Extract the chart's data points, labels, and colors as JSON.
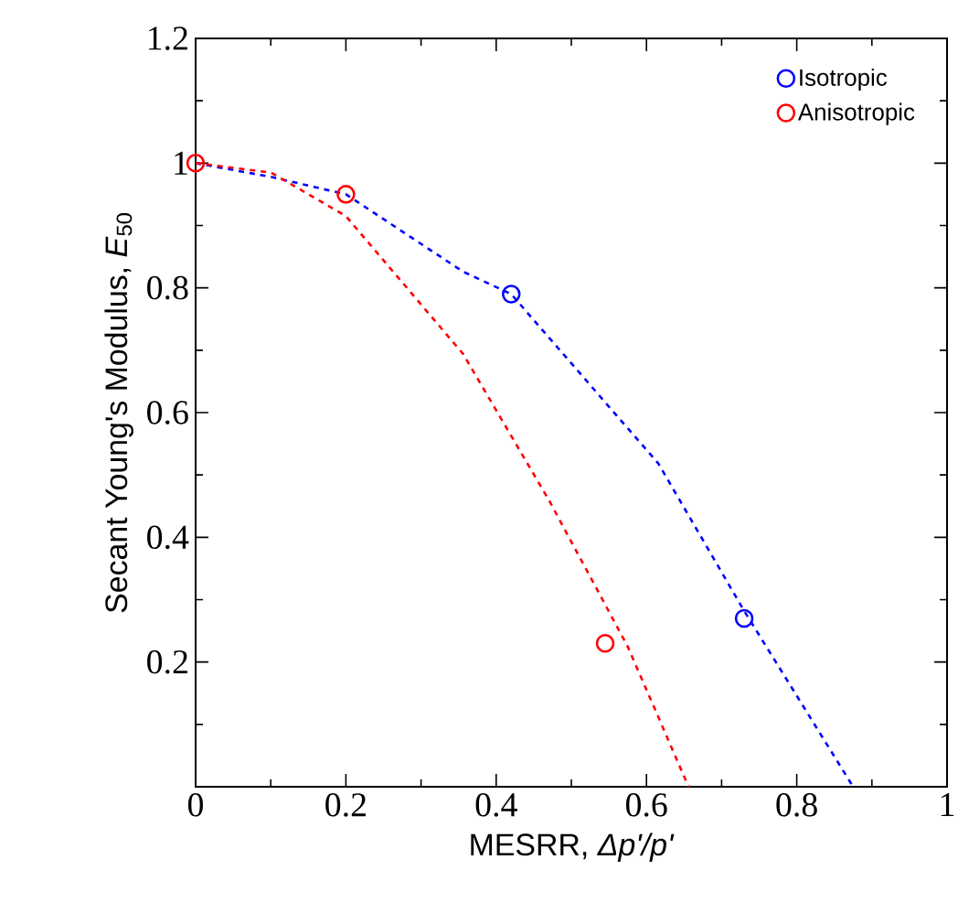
{
  "chart_data": {
    "type": "scatter",
    "xlabel": "MESRR, *Δp'/p'*",
    "ylabel": "Secant Young's Modulus, *E*$_{50}$",
    "xlim": [
      0,
      1
    ],
    "ylim": [
      0,
      1.2
    ],
    "xticks": [
      0,
      0.2,
      0.4,
      0.6,
      0.8,
      1
    ],
    "yticks": [
      {
        "value": 0,
        "label": null
      },
      0.2,
      0.4,
      0.6,
      0.8,
      1,
      1.2
    ],
    "legend": "top right",
    "marker": "circle",
    "series": [
      {
        "name": "Isotropic",
        "color": "#0000ff",
        "x": [
          0.42,
          0.73
        ],
        "values": [
          0.79,
          0.27
        ]
      },
      {
        "name": "Anisotropic",
        "color": "#ff0000",
        "x": [
          0,
          0.2,
          0.545
        ],
        "values": [
          1,
          0.95,
          0.23
        ]
      },
      {
        "type": "line",
        "color": "#0000ff",
        "line_style": "dashed",
        "marker": "none",
        "x": [
          0,
          0.1,
          0.2,
          0.356,
          0.42,
          0.616,
          0.729,
          0.875
        ],
        "values": [
          1,
          0.978,
          0.95,
          0.826,
          0.79,
          0.518,
          0.284,
          0
        ]
      },
      {
        "type": "line",
        "color": "#ff0000",
        "line_style": "dashed",
        "marker": "none",
        "x": [
          0,
          0.1,
          0.2,
          0.356,
          0.47,
          0.575,
          0.656
        ],
        "values": [
          1,
          0.985,
          0.915,
          0.694,
          0.46,
          0.225,
          0
        ]
      }
    ]
  }
}
